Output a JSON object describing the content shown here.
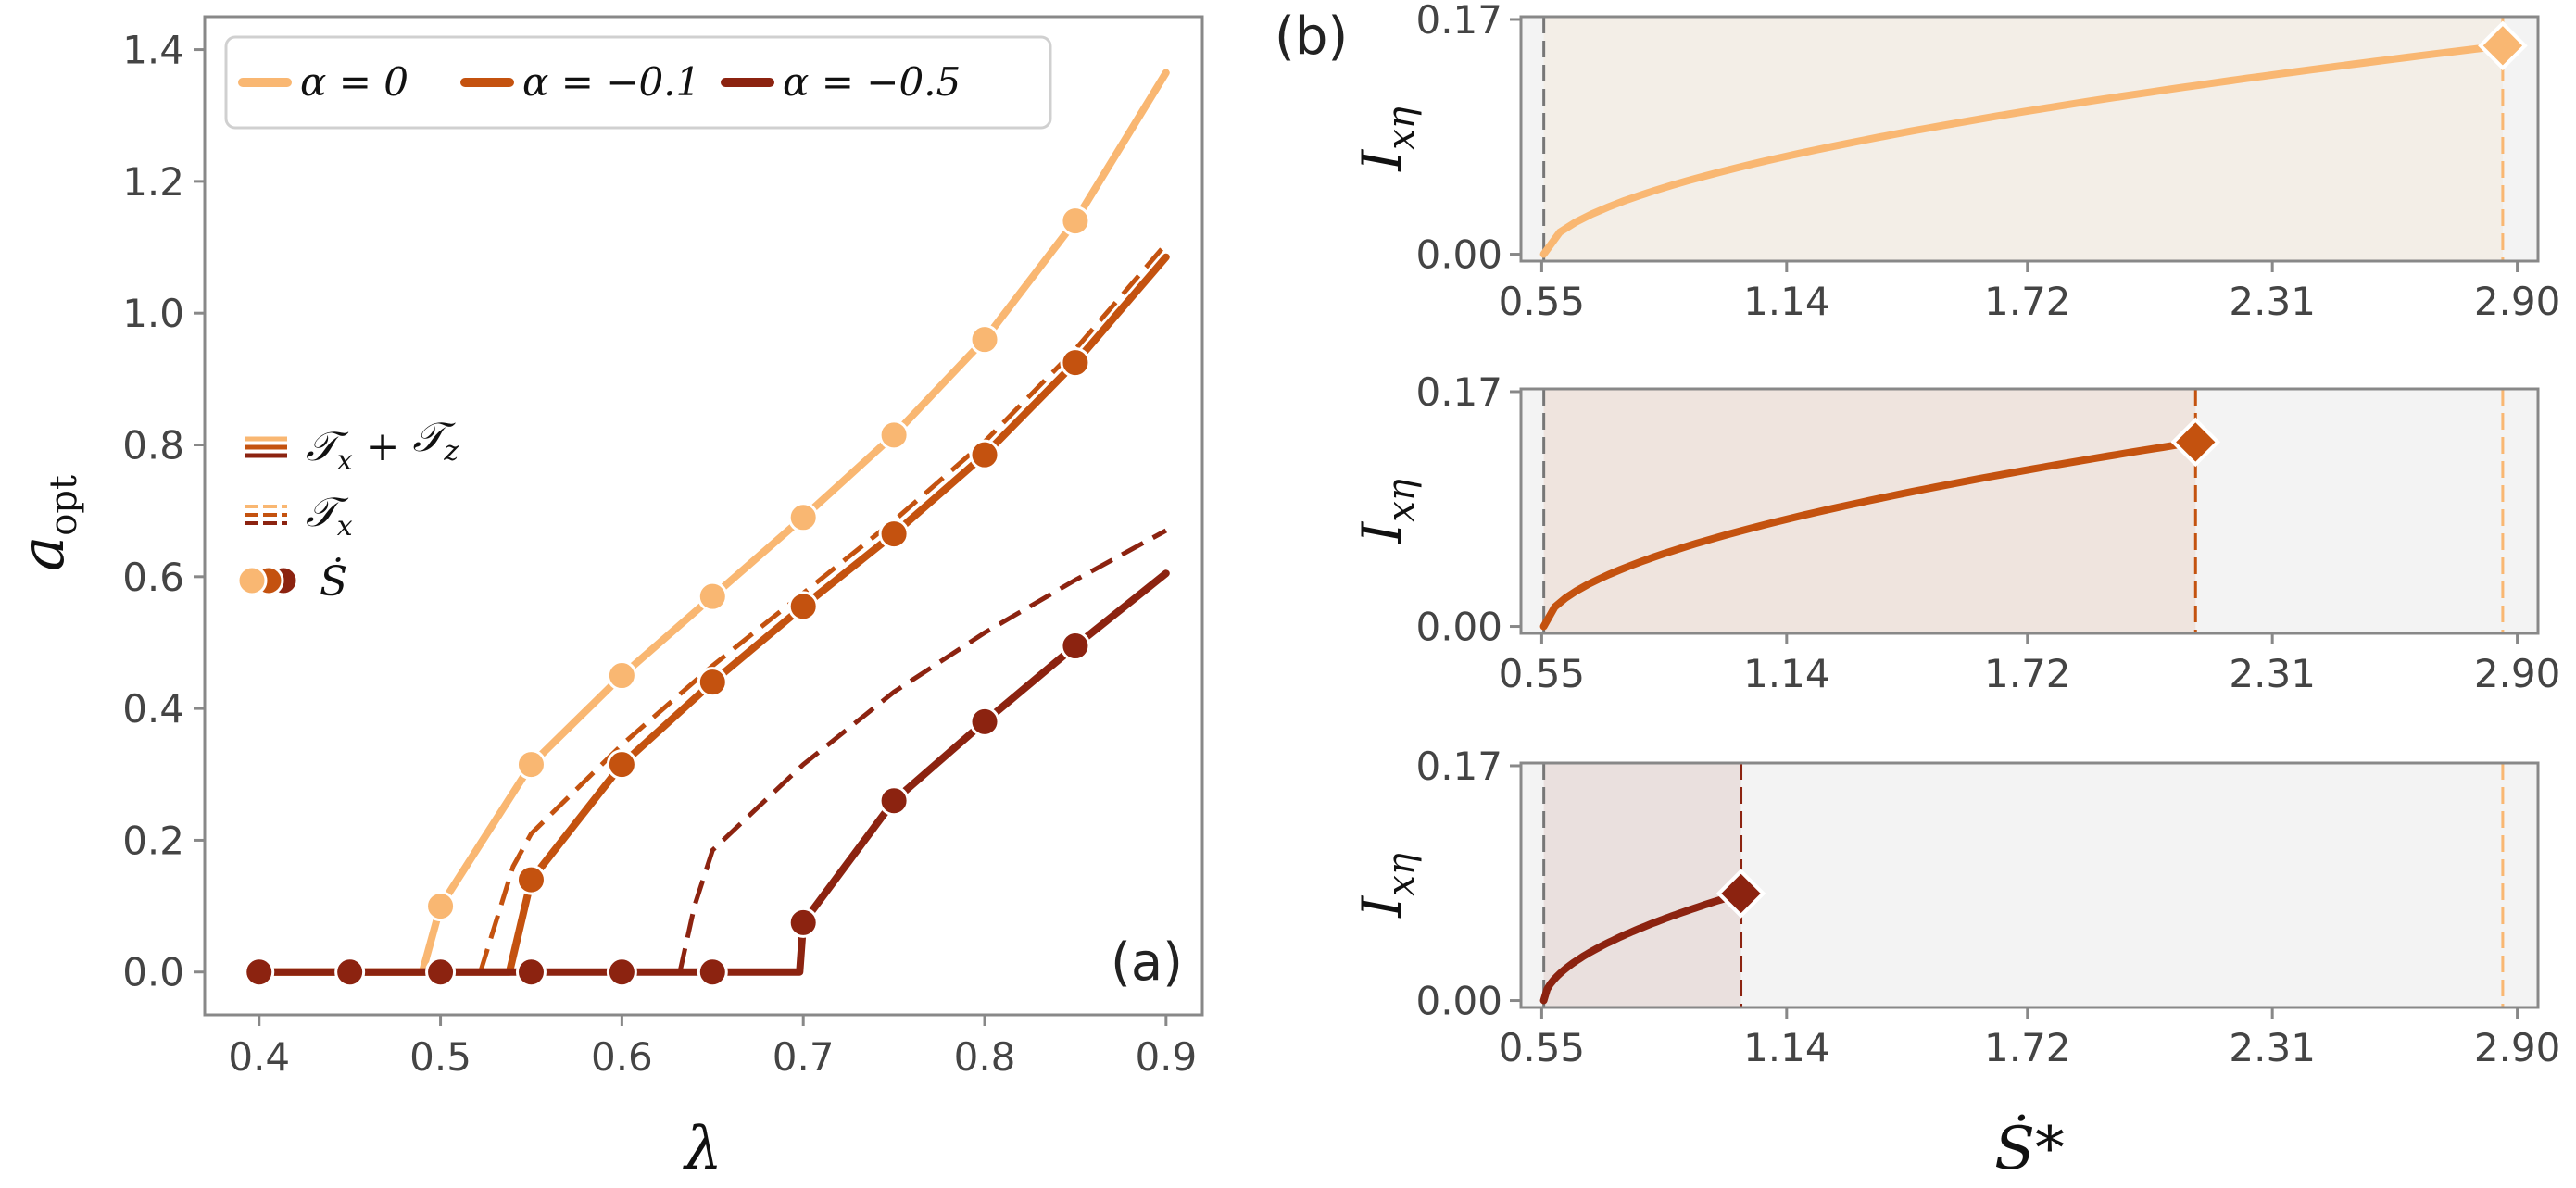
{
  "colors": {
    "alpha_0": "#F9B772",
    "alpha_m01": "#C4520F",
    "alpha_m05": "#8C2310",
    "axis": "#888888",
    "tick_text": "#444444",
    "grey_band": "#F3F3F3"
  },
  "chart_data": [
    {
      "id": "a",
      "type": "line",
      "panel_label": "(a)",
      "xlabel": "λ",
      "ylabel": "a",
      "ylabel_sub": "opt",
      "xlim": [
        0.37,
        0.92
      ],
      "ylim": [
        -0.065,
        1.45
      ],
      "xticks": [
        "0.4",
        "0.5",
        "0.6",
        "0.7",
        "0.8",
        "0.9"
      ],
      "yticks": [
        "0.0",
        "0.2",
        "0.4",
        "0.6",
        "0.8",
        "1.0",
        "1.2",
        "1.4"
      ],
      "grid": false,
      "legend_alpha": {
        "position": "top",
        "entries": [
          {
            "color_key": "alpha_0",
            "label": "α = 0"
          },
          {
            "color_key": "alpha_m01",
            "label": "α = −0.1"
          },
          {
            "color_key": "alpha_m05",
            "label": "α = −0.5"
          }
        ]
      },
      "legend_style": {
        "position": "left",
        "entries": [
          {
            "style": "solid",
            "label_parts": [
              "𝒯",
              "x",
              " + ",
              "𝒯",
              "z"
            ]
          },
          {
            "style": "dashed",
            "label_parts": [
              "𝒯",
              "x"
            ]
          },
          {
            "style": "markers",
            "label": "Ṡ"
          }
        ]
      },
      "series": [
        {
          "name": "α = 0",
          "color_key": "alpha_0",
          "solid": {
            "x": [
              0.4,
              0.49,
              0.5,
              0.55,
              0.6,
              0.65,
              0.7,
              0.75,
              0.8,
              0.85,
              0.9
            ],
            "y": [
              0.0,
              0.0,
              0.1,
              0.315,
              0.45,
              0.57,
              0.69,
              0.815,
              0.96,
              1.14,
              1.365
            ]
          },
          "dashed": null,
          "markers": {
            "x": [
              0.4,
              0.45,
              0.5,
              0.55,
              0.6,
              0.65,
              0.7,
              0.75,
              0.8,
              0.85
            ],
            "y": [
              0.0,
              0.0,
              0.1,
              0.315,
              0.45,
              0.57,
              0.69,
              0.815,
              0.96,
              1.14
            ]
          }
        },
        {
          "name": "α = −0.1",
          "color_key": "alpha_m01",
          "solid": {
            "x": [
              0.4,
              0.538,
              0.55,
              0.6,
              0.65,
              0.7,
              0.75,
              0.8,
              0.85,
              0.9
            ],
            "y": [
              0.0,
              0.0,
              0.14,
              0.315,
              0.44,
              0.555,
              0.665,
              0.785,
              0.925,
              1.085
            ]
          },
          "dashed": {
            "x": [
              0.522,
              0.54,
              0.55,
              0.6,
              0.65,
              0.7,
              0.75,
              0.8,
              0.85,
              0.9
            ],
            "y": [
              0.0,
              0.16,
              0.21,
              0.345,
              0.465,
              0.575,
              0.685,
              0.805,
              0.945,
              1.105
            ]
          },
          "markers": {
            "x": [
              0.4,
              0.45,
              0.5,
              0.55,
              0.6,
              0.65,
              0.7,
              0.75,
              0.8,
              0.85
            ],
            "y": [
              0.0,
              0.0,
              0.0,
              0.14,
              0.315,
              0.44,
              0.555,
              0.665,
              0.785,
              0.925
            ]
          }
        },
        {
          "name": "α = −0.5",
          "color_key": "alpha_m05",
          "solid": {
            "x": [
              0.4,
              0.698,
              0.7,
              0.75,
              0.8,
              0.85,
              0.9
            ],
            "y": [
              0.0,
              0.0,
              0.075,
              0.26,
              0.38,
              0.495,
              0.605
            ]
          },
          "dashed": {
            "x": [
              0.632,
              0.64,
              0.65,
              0.7,
              0.75,
              0.8,
              0.85,
              0.9
            ],
            "y": [
              0.0,
              0.1,
              0.185,
              0.315,
              0.425,
              0.515,
              0.595,
              0.67
            ]
          },
          "markers": {
            "x": [
              0.4,
              0.45,
              0.5,
              0.55,
              0.6,
              0.65,
              0.7,
              0.75,
              0.8,
              0.85
            ],
            "y": [
              0.0,
              0.0,
              0.0,
              0.0,
              0.0,
              0.0,
              0.075,
              0.26,
              0.38,
              0.495
            ]
          }
        }
      ]
    },
    {
      "id": "b",
      "type": "line",
      "panel_label": "(b)",
      "xlabel": "Ṡ*",
      "ylabel": "I",
      "ylabel_sub": "xη",
      "xticks": [
        "0.55",
        "1.14",
        "1.72",
        "2.31",
        "2.90"
      ],
      "yticks": [
        "0.00",
        "0.17"
      ],
      "xlim": [
        0.5,
        2.95
      ],
      "ylim": [
        -0.005,
        0.172
      ],
      "x_start_line": 0.555,
      "x_max_line": 2.865,
      "subplots": [
        {
          "color_key": "alpha_0",
          "x_end": 2.865,
          "y_end": 0.151
        },
        {
          "color_key": "alpha_m01",
          "x_end": 2.125,
          "y_end": 0.1335
        },
        {
          "color_key": "alpha_m05",
          "x_end": 1.03,
          "y_end": 0.0775
        }
      ]
    }
  ]
}
